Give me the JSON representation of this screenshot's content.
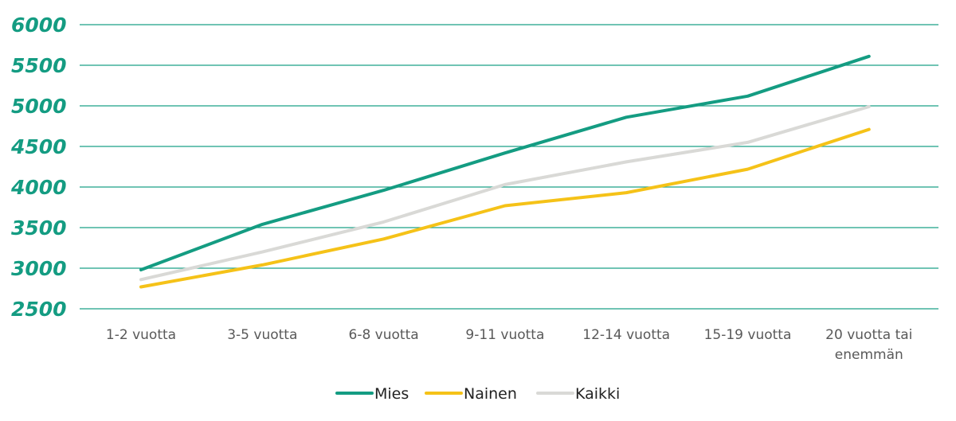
{
  "chart_data": {
    "type": "line",
    "categories": [
      [
        "1-2 vuotta"
      ],
      [
        "3-5 vuotta"
      ],
      [
        "6-8 vuotta"
      ],
      [
        "9-11 vuotta"
      ],
      [
        "12-14 vuotta"
      ],
      [
        "15-19 vuotta"
      ],
      [
        "20 vuotta tai",
        "enemmän"
      ]
    ],
    "ylim": [
      2500,
      6000
    ],
    "yticks": [
      "2500",
      "3000",
      "3500",
      "4000",
      "4500",
      "5000",
      "5500",
      "6000"
    ],
    "grid": true,
    "legend_position": "bottom",
    "series": [
      {
        "name": "Mies",
        "color": "#149c82",
        "values": [
          2980,
          3540,
          3960,
          4420,
          4860,
          5120,
          5610
        ]
      },
      {
        "name": "Nainen",
        "color": "#f5c218",
        "values": [
          2770,
          3040,
          3360,
          3770,
          3930,
          4220,
          4710
        ]
      },
      {
        "name": "Kaikki",
        "color": "#d9d9d6",
        "values": [
          2860,
          3200,
          3570,
          4030,
          4310,
          4550,
          4990
        ]
      }
    ],
    "colors": {
      "grid": "#1aa086",
      "ytick": "#149c82",
      "xtick": "#595959",
      "legend_text": "#222222"
    }
  }
}
